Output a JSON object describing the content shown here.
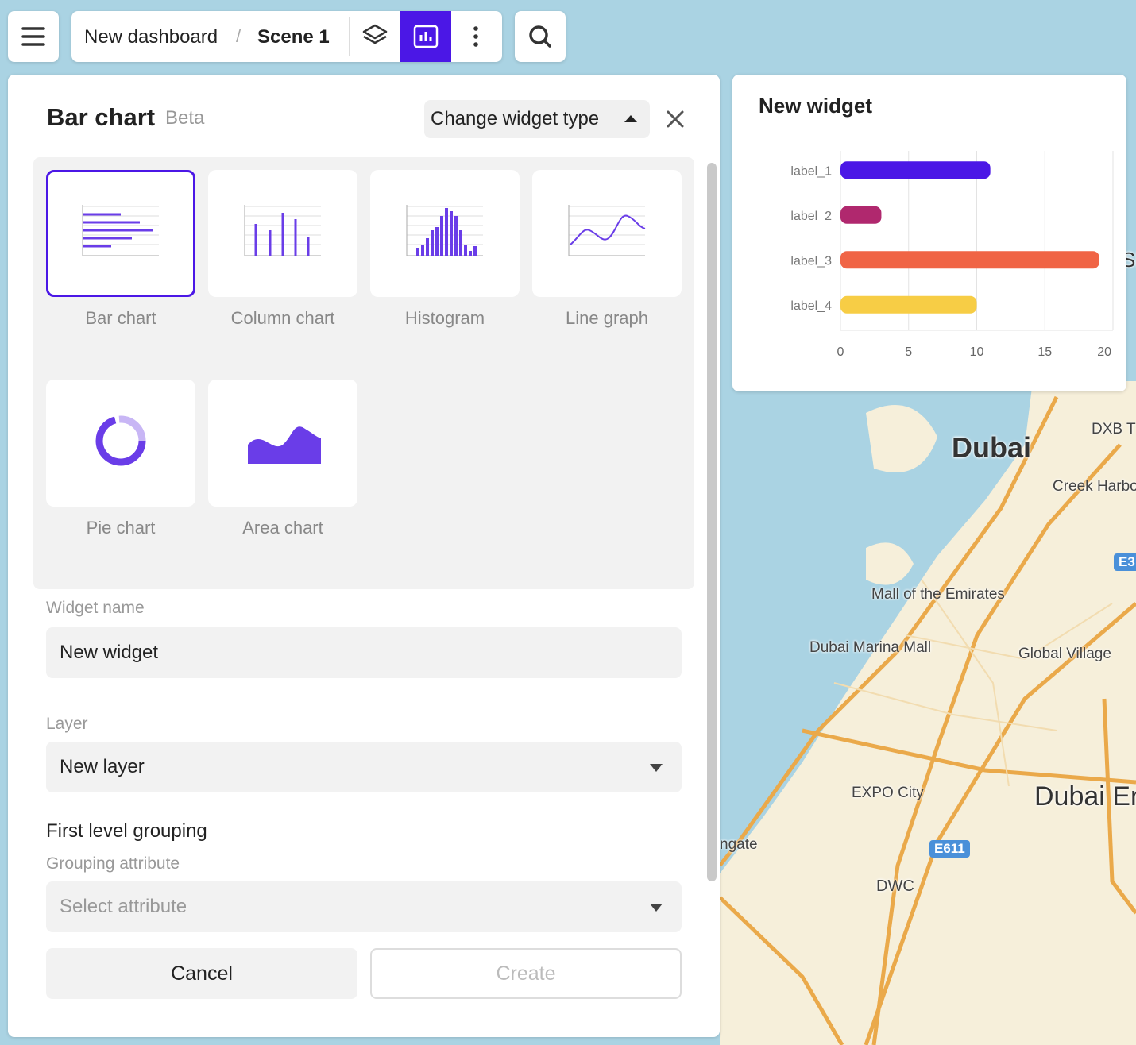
{
  "toolbar": {
    "breadcrumb_root": "New dashboard",
    "separator": "/",
    "scene": "Scene 1"
  },
  "panel": {
    "title": "Bar chart",
    "badge": "Beta",
    "change_type_button": "Change widget type",
    "widget_types": [
      "Bar chart",
      "Column chart",
      "Histogram",
      "Line graph",
      "Pie chart",
      "Area chart"
    ],
    "selected_type": 0,
    "fields": {
      "widget_name": {
        "label": "Widget name",
        "value": "New widget"
      },
      "layer": {
        "label": "Layer",
        "value": "New layer"
      },
      "grouping": {
        "heading": "First level grouping",
        "label": "Grouping attribute",
        "placeholder": "Select attribute"
      }
    },
    "buttons": {
      "cancel": "Cancel",
      "create": "Create"
    }
  },
  "chart_data": {
    "type": "bar",
    "orientation": "horizontal",
    "title": "New widget",
    "categories": [
      "label_1",
      "label_2",
      "label_3",
      "label_4"
    ],
    "values": [
      11,
      3,
      19,
      10
    ],
    "colors": [
      "#4b17e6",
      "#b0286e",
      "#f06445",
      "#f7cd45"
    ],
    "xlim": [
      0,
      20
    ],
    "xticks": [
      0,
      5,
      10,
      15,
      20
    ],
    "grid": true
  },
  "map_labels": [
    "Dubai",
    "DXB T",
    "Creek Harbo",
    "E3",
    "Mall of the Emirates",
    "Dubai Marina Mall",
    "Global Village",
    "EXPO City",
    "Dubai Er",
    "ngate",
    "E611",
    "DWC",
    "Sh"
  ]
}
